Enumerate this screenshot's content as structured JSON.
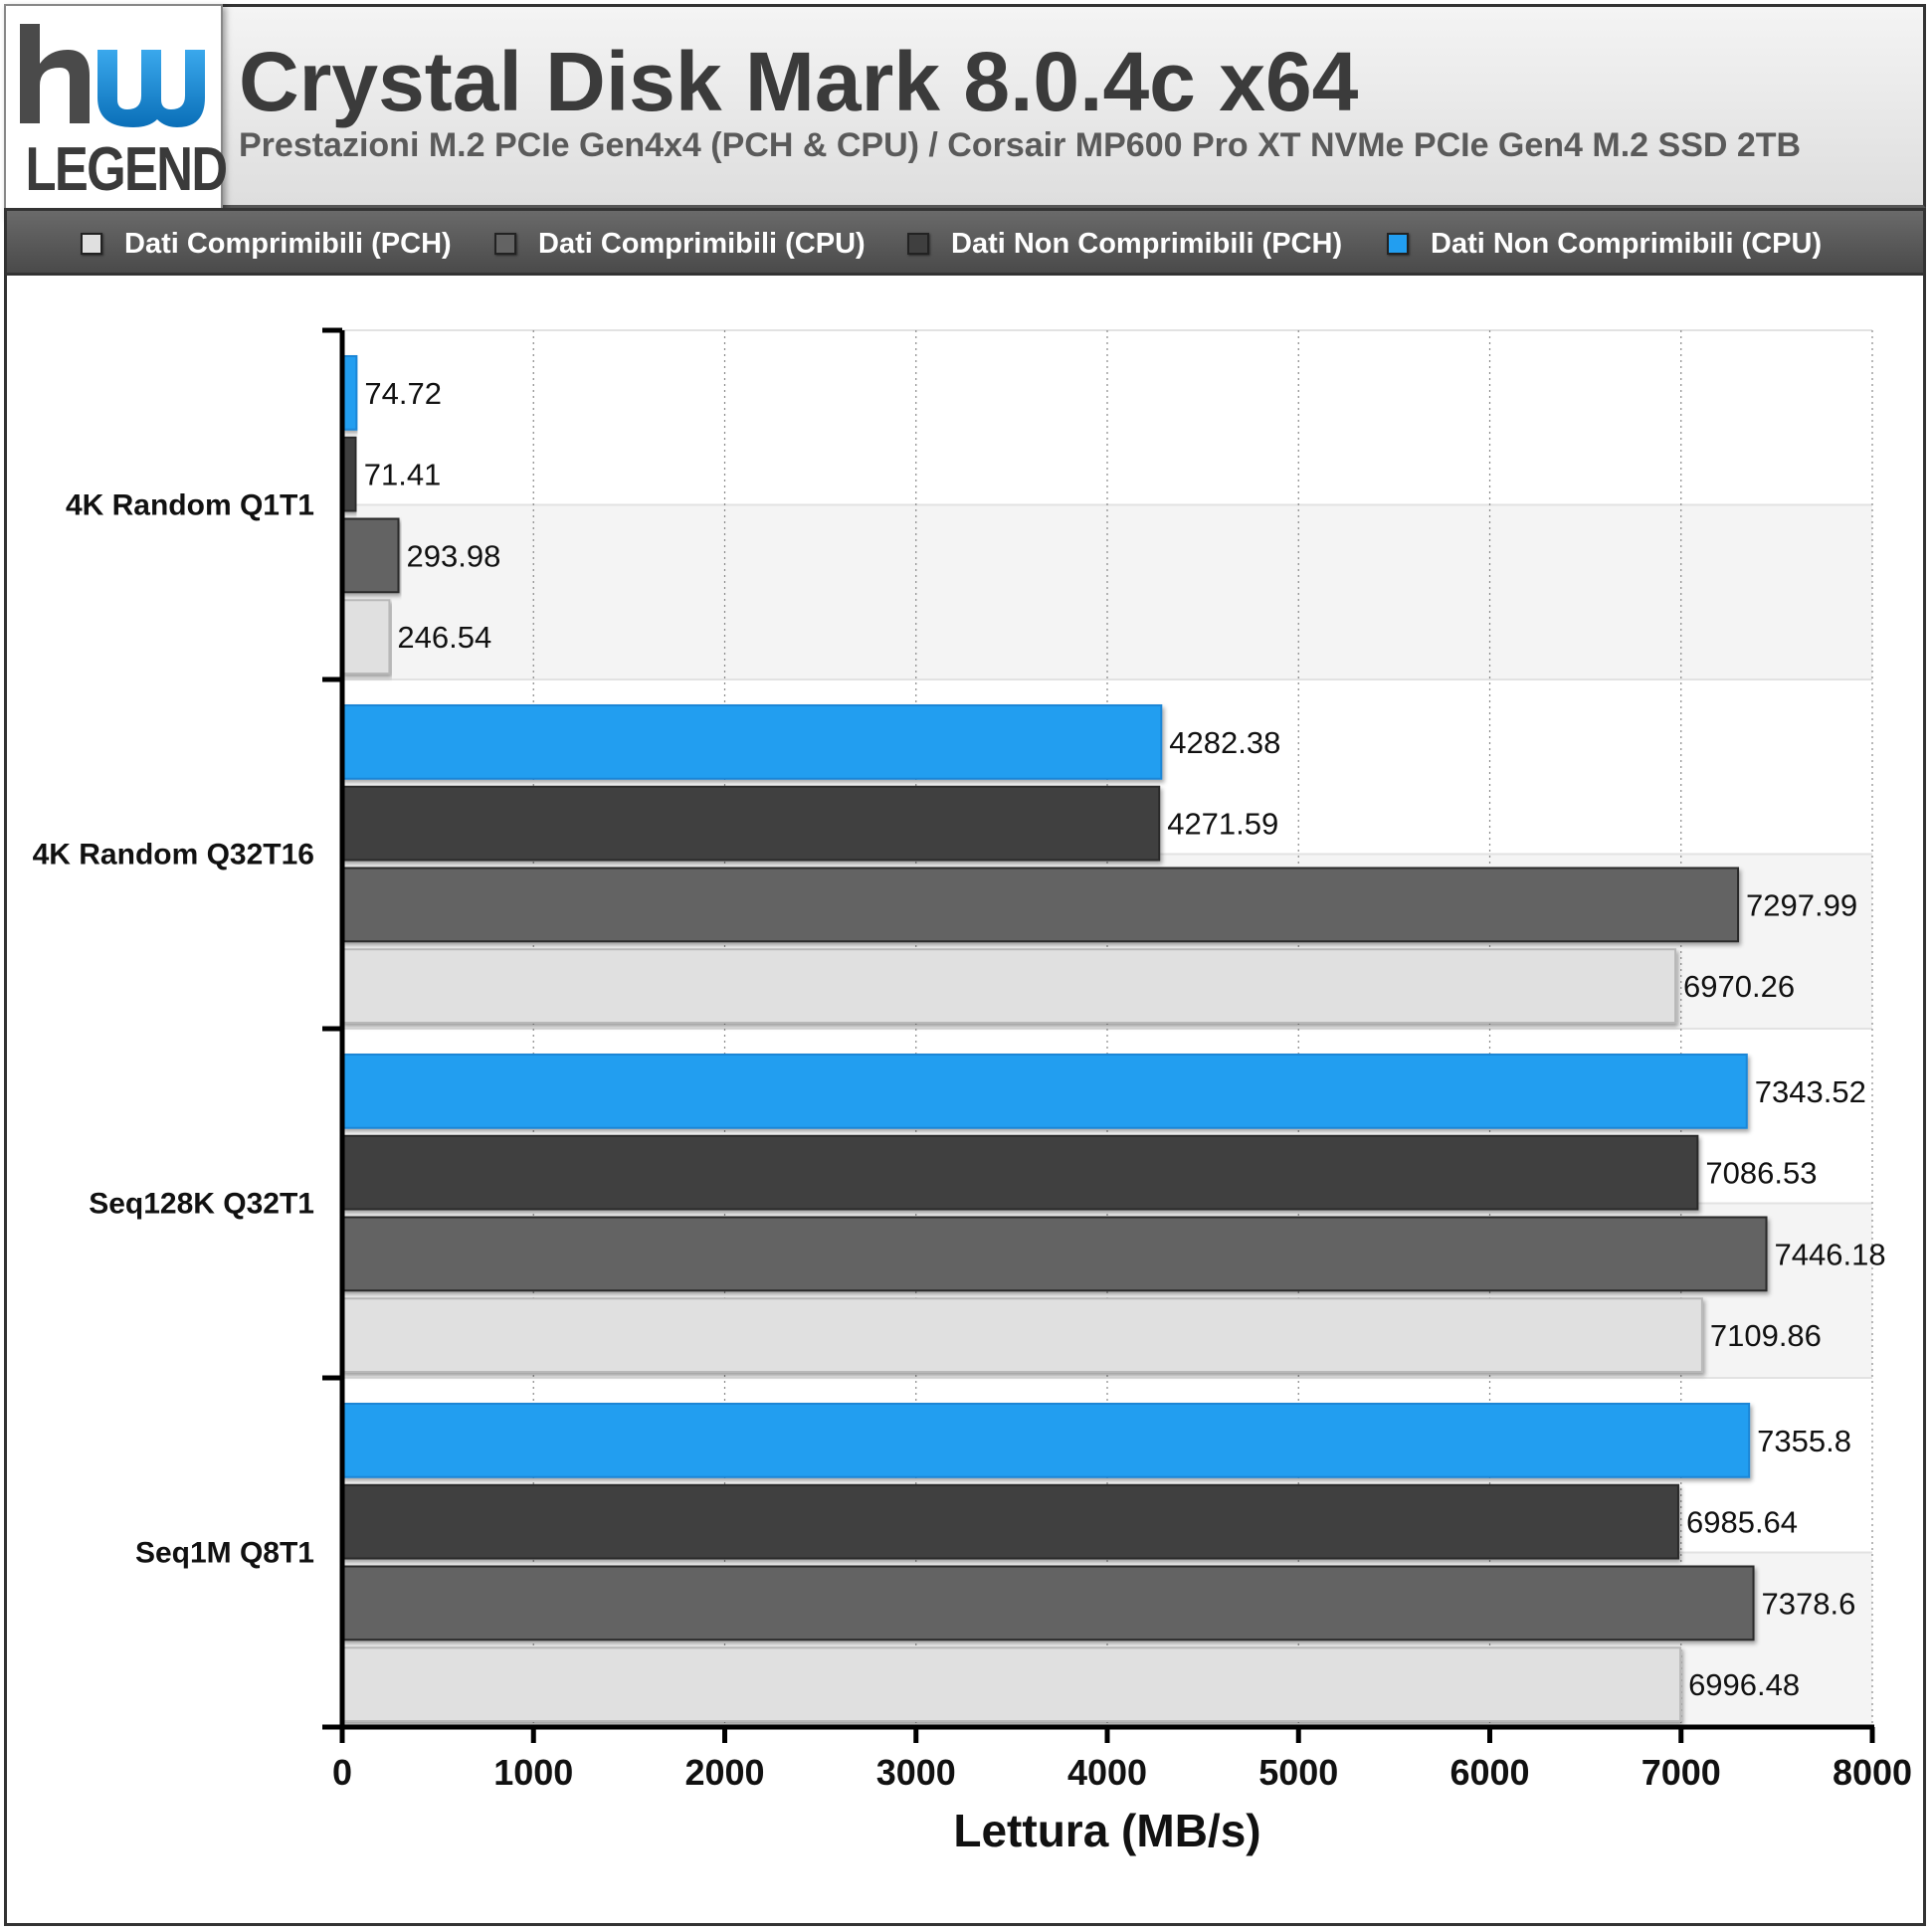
{
  "header": {
    "logo_text": "LEGEND",
    "title": "Crystal Disk Mark 8.0.4c x64",
    "subtitle": "Prestazioni M.2 PCIe Gen4x4 (PCH & CPU) / Corsair MP600 Pro XT NVMe PCIe Gen4 M.2 SSD 2TB"
  },
  "colors": {
    "comp_pch": "#e0e0e0",
    "comp_cpu": "#636363",
    "noncomp_pch": "#3f3f3f",
    "noncomp_cpu": "#229ef0",
    "logo_blue": "#1a8ed8"
  },
  "chart_data": {
    "type": "bar",
    "orientation": "horizontal",
    "title": "Crystal Disk Mark 8.0.4c x64",
    "subtitle": "Prestazioni M.2 PCIe Gen4x4 (PCH & CPU) / Corsair MP600 Pro XT NVMe PCIe Gen4 M.2 SSD 2TB",
    "xlabel": "Lettura (MB/s)",
    "ylabel": "",
    "xlim": [
      0,
      8000
    ],
    "xticks": [
      0,
      1000,
      2000,
      3000,
      4000,
      5000,
      6000,
      7000,
      8000
    ],
    "grid": "vertical dotted",
    "legend_position": "top",
    "categories": [
      "4K Random Q1T1",
      "4K Random Q32T16",
      "Seq128K Q32T1",
      "Seq1M Q8T1"
    ],
    "series": [
      {
        "name": "Dati Comprimibili (PCH)",
        "color": "#e0e0e0",
        "values": [
          246.54,
          6970.26,
          7109.86,
          6996.48
        ],
        "labels": [
          "246.54",
          "6970.26",
          "7109.86",
          "6996.48"
        ]
      },
      {
        "name": "Dati Comprimibili (CPU)",
        "color": "#636363",
        "values": [
          293.98,
          7297.99,
          7446.18,
          7378.6
        ],
        "labels": [
          "293.98",
          "7297.99",
          "7446.18",
          "7378.6"
        ]
      },
      {
        "name": "Dati Non Comprimibili (PCH)",
        "color": "#3f3f3f",
        "values": [
          71.41,
          4271.59,
          7086.53,
          6985.64
        ],
        "labels": [
          "71.41",
          "4271.59",
          "7086.53",
          "6985.64"
        ]
      },
      {
        "name": "Dati Non Comprimibili (CPU)",
        "color": "#229ef0",
        "values": [
          74.72,
          4282.38,
          7343.52,
          7355.8
        ],
        "labels": [
          "74.72",
          "4282.38",
          "7343.52",
          "7355.8"
        ]
      }
    ]
  }
}
